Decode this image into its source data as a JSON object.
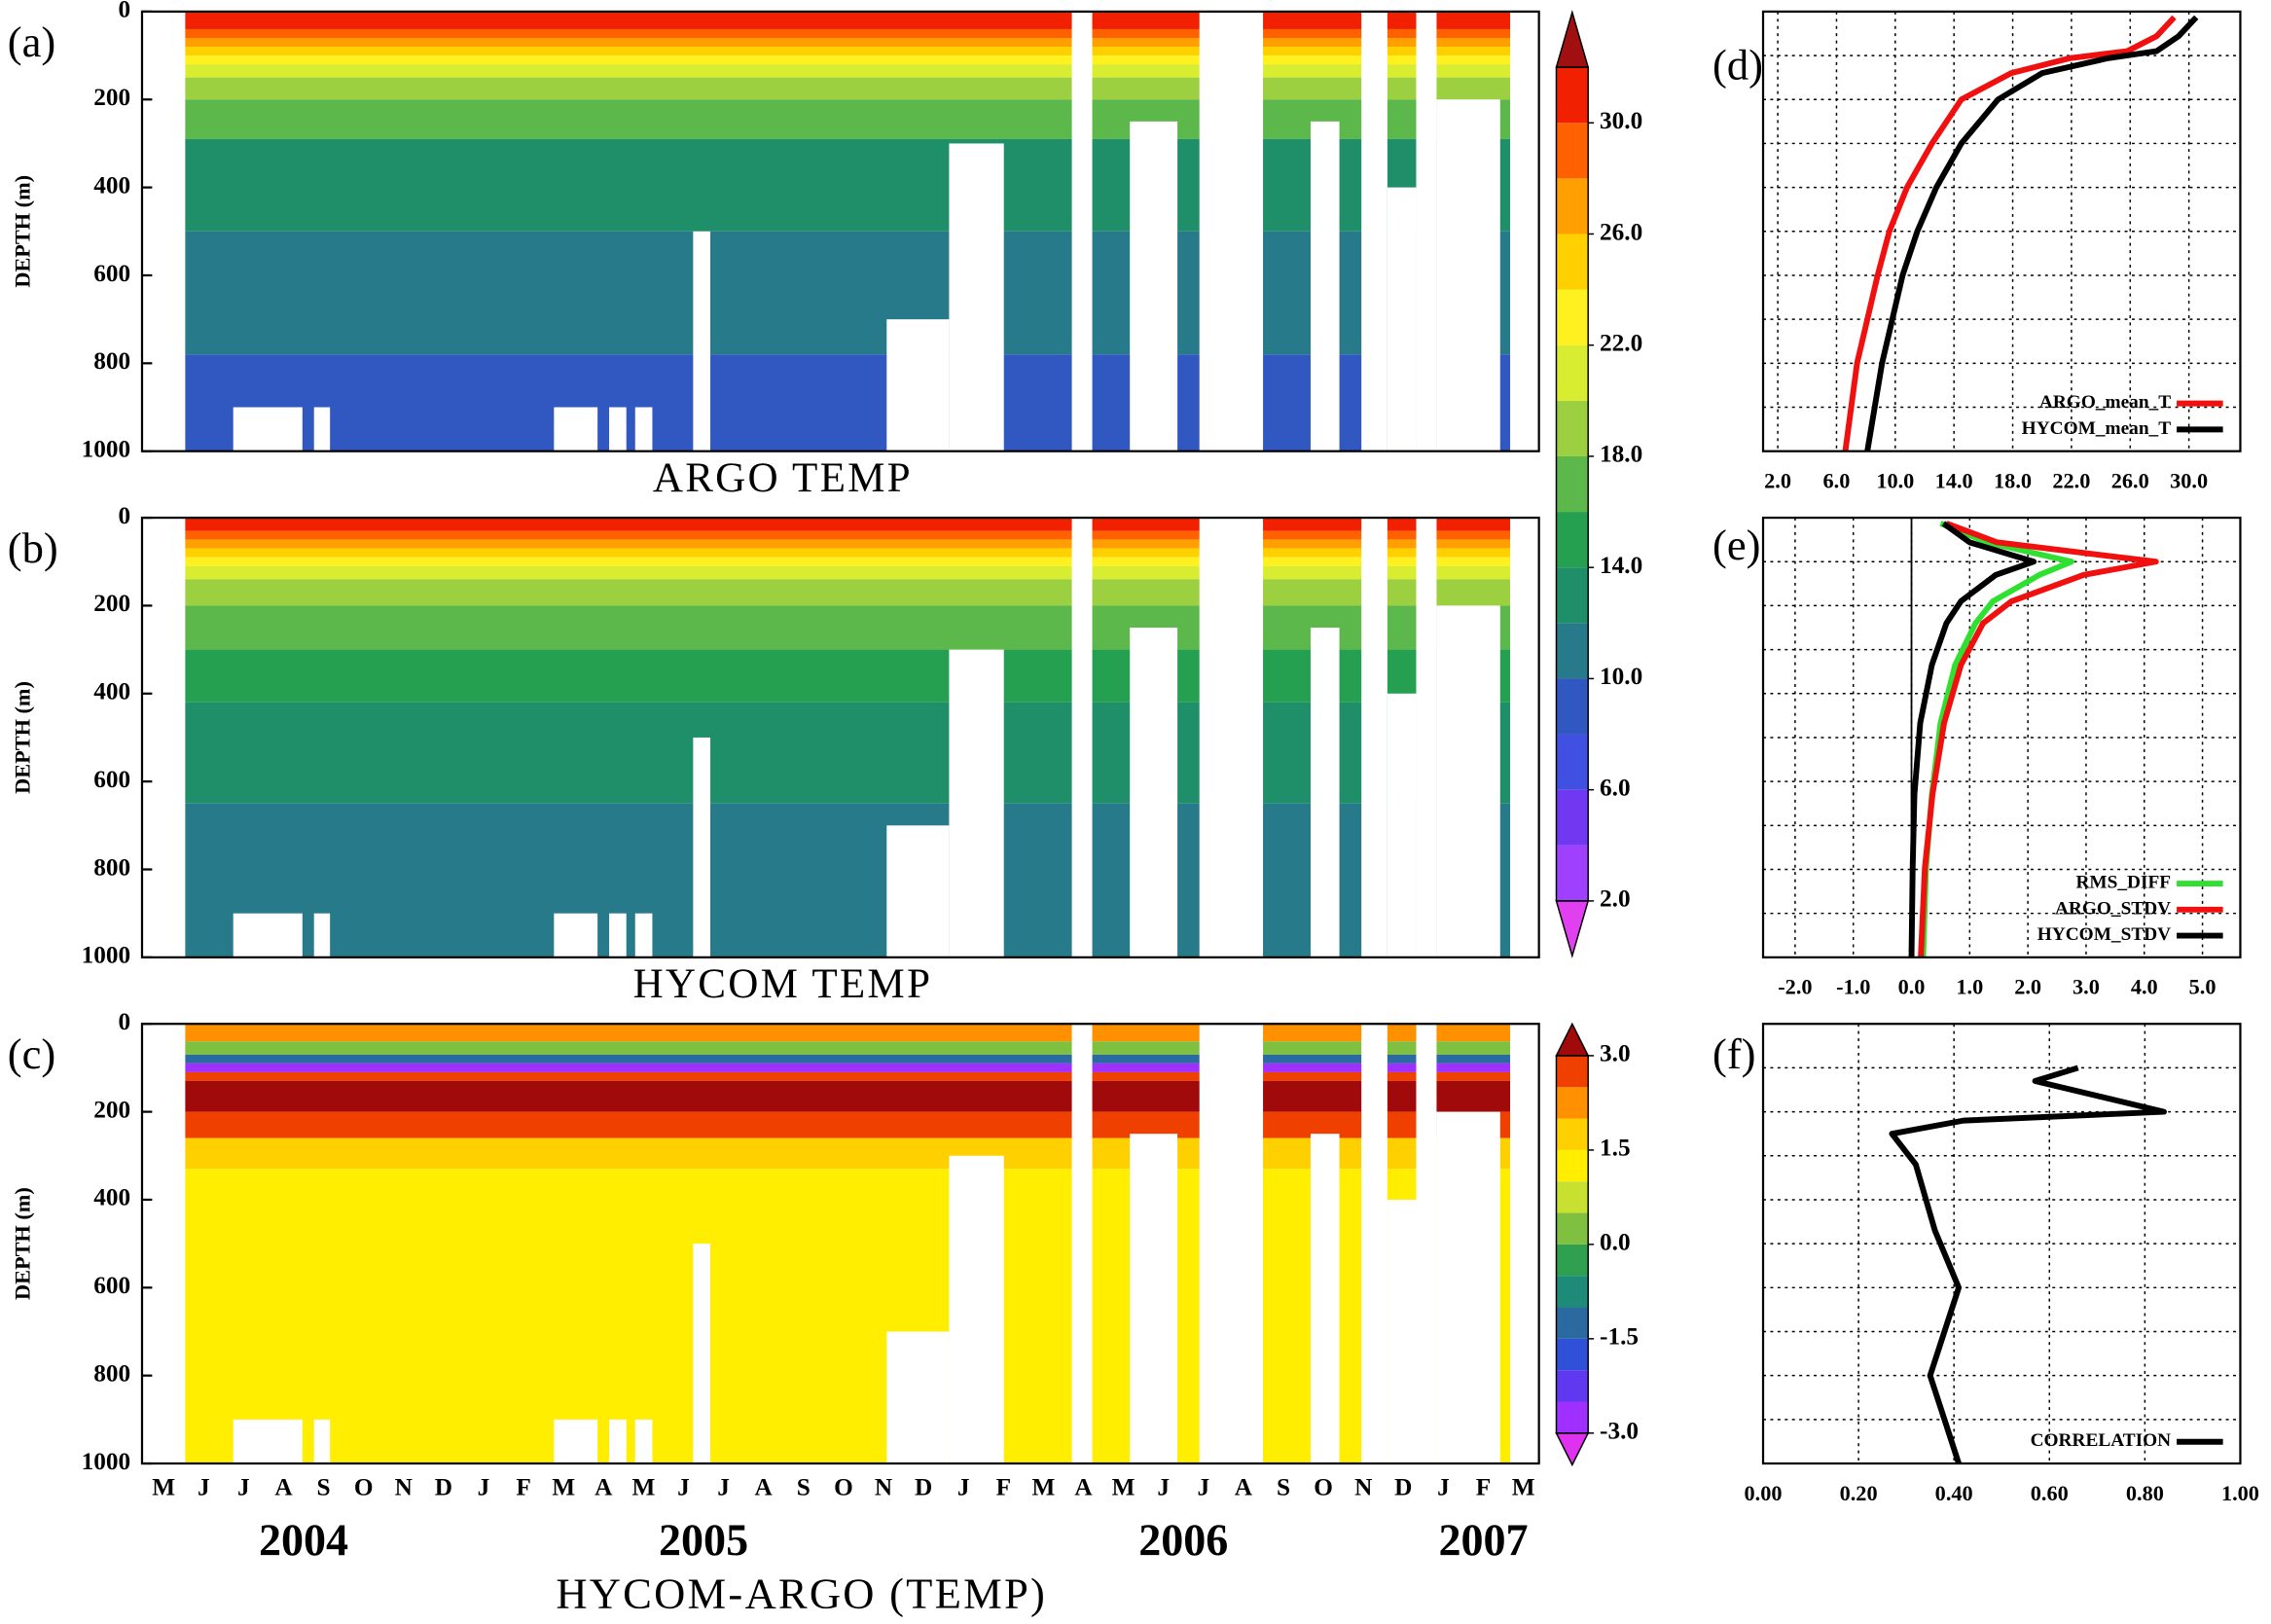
{
  "chart_data": [
    {
      "type": "contour",
      "label": "(a)",
      "title": "ARGO TEMP",
      "y_label": "DEPTH (m)",
      "ylim": [
        1000,
        0
      ],
      "yticks": [
        0,
        200,
        400,
        600,
        800,
        1000
      ],
      "xlim": [
        -0.54,
        34.39
      ],
      "x_range": [
        0.54,
        33.67
      ],
      "layers": [
        {
          "top": 0,
          "bottom": 40,
          "value": 31
        },
        {
          "top": 40,
          "bottom": 60,
          "value": 29
        },
        {
          "top": 60,
          "bottom": 80,
          "value": 27
        },
        {
          "top": 80,
          "bottom": 100,
          "value": 25
        },
        {
          "top": 100,
          "bottom": 120,
          "value": 23
        },
        {
          "top": 120,
          "bottom": 150,
          "value": 21
        },
        {
          "top": 150,
          "bottom": 200,
          "value": 19
        },
        {
          "top": 200,
          "bottom": 290,
          "value": 17
        },
        {
          "top": 290,
          "bottom": 500,
          "value": 13
        },
        {
          "top": 500,
          "bottom": 780,
          "value": 11
        },
        {
          "top": 780,
          "bottom": 1000,
          "value": 9
        }
      ],
      "gaps": [
        {
          "x0": 1.74,
          "x1": 3.47,
          "top": 900
        },
        {
          "x0": 3.76,
          "x1": 4.16,
          "top": 900
        },
        {
          "x0": 9.76,
          "x1": 10.85,
          "top": 900
        },
        {
          "x0": 11.14,
          "x1": 11.57,
          "top": 900
        },
        {
          "x0": 11.79,
          "x1": 12.22,
          "top": 900
        },
        {
          "x0": 13.24,
          "x1": 13.67,
          "top": 500
        },
        {
          "x0": 18.08,
          "x1": 19.64,
          "top": 700
        },
        {
          "x0": 19.64,
          "x1": 21.01,
          "top": 300
        },
        {
          "x0": 22.71,
          "x1": 23.22,
          "top": 0
        },
        {
          "x0": 24.16,
          "x1": 25.35,
          "top": 250
        },
        {
          "x0": 25.9,
          "x1": 27.49,
          "top": 0
        },
        {
          "x0": 28.68,
          "x1": 29.4,
          "top": 250
        },
        {
          "x0": 29.95,
          "x1": 30.6,
          "top": 0
        },
        {
          "x0": 30.6,
          "x1": 31.32,
          "top": 400
        },
        {
          "x0": 31.32,
          "x1": 31.83,
          "top": 0
        },
        {
          "x0": 31.83,
          "x1": 33.42,
          "top": 200
        }
      ],
      "colorbar": {
        "levels": [
          2,
          4,
          6,
          8,
          10,
          12,
          14,
          16,
          18,
          20,
          22,
          24,
          26,
          28,
          30,
          32
        ],
        "colors": [
          "#e040f0",
          "#a040ff",
          "#7038f0",
          "#4050e0",
          "#3158c0",
          "#267a8a",
          "#1f8f6a",
          "#24a050",
          "#5cb84a",
          "#9cd040",
          "#d8ec30",
          "#fff020",
          "#ffd000",
          "#ffa000",
          "#ff6000",
          "#f02000",
          "#a01010"
        ],
        "ticks": [
          {
            "value": 2,
            "label": "2.0"
          },
          {
            "value": 6,
            "label": "6.0"
          },
          {
            "value": 10,
            "label": "10.0"
          },
          {
            "value": 14,
            "label": "14.0"
          },
          {
            "value": 18,
            "label": "18.0"
          },
          {
            "value": 22,
            "label": "22.0"
          },
          {
            "value": 26,
            "label": "26.0"
          },
          {
            "value": 30,
            "label": "30.0"
          }
        ]
      }
    },
    {
      "type": "contour",
      "label": "(b)",
      "title": "HYCOM TEMP",
      "y_label": "DEPTH (m)",
      "ylim": [
        1000,
        0
      ],
      "yticks": [
        0,
        200,
        400,
        600,
        800,
        1000
      ],
      "xlim": [
        -0.54,
        34.39
      ],
      "x_range": [
        0.54,
        33.67
      ],
      "layers": [
        {
          "top": 0,
          "bottom": 30,
          "value": 31
        },
        {
          "top": 30,
          "bottom": 50,
          "value": 29
        },
        {
          "top": 50,
          "bottom": 70,
          "value": 27
        },
        {
          "top": 70,
          "bottom": 90,
          "value": 25
        },
        {
          "top": 90,
          "bottom": 110,
          "value": 23
        },
        {
          "top": 110,
          "bottom": 140,
          "value": 21
        },
        {
          "top": 140,
          "bottom": 200,
          "value": 19
        },
        {
          "top": 200,
          "bottom": 300,
          "value": 17
        },
        {
          "top": 300,
          "bottom": 420,
          "value": 15
        },
        {
          "top": 420,
          "bottom": 650,
          "value": 13
        },
        {
          "top": 650,
          "bottom": 1000,
          "value": 11
        }
      ],
      "gaps": [
        {
          "x0": 1.74,
          "x1": 3.47,
          "top": 900
        },
        {
          "x0": 3.76,
          "x1": 4.16,
          "top": 900
        },
        {
          "x0": 9.76,
          "x1": 10.85,
          "top": 900
        },
        {
          "x0": 11.14,
          "x1": 11.57,
          "top": 900
        },
        {
          "x0": 11.79,
          "x1": 12.22,
          "top": 900
        },
        {
          "x0": 13.24,
          "x1": 13.67,
          "top": 500
        },
        {
          "x0": 18.08,
          "x1": 19.64,
          "top": 700
        },
        {
          "x0": 19.64,
          "x1": 21.01,
          "top": 300
        },
        {
          "x0": 22.71,
          "x1": 23.22,
          "top": 0
        },
        {
          "x0": 24.16,
          "x1": 25.35,
          "top": 250
        },
        {
          "x0": 25.9,
          "x1": 27.49,
          "top": 0
        },
        {
          "x0": 28.68,
          "x1": 29.4,
          "top": 250
        },
        {
          "x0": 29.95,
          "x1": 30.6,
          "top": 0
        },
        {
          "x0": 30.6,
          "x1": 31.32,
          "top": 400
        },
        {
          "x0": 31.32,
          "x1": 31.83,
          "top": 0
        },
        {
          "x0": 31.83,
          "x1": 33.42,
          "top": 200
        }
      ]
    },
    {
      "type": "contour",
      "label": "(c)",
      "x_label": "HYCOM-ARGO (TEMP)",
      "y_label": "DEPTH (m)",
      "ylim": [
        1000,
        0
      ],
      "yticks": [
        0,
        200,
        400,
        600,
        800,
        1000
      ],
      "xlim": [
        -0.54,
        34.39
      ],
      "x_range": [
        0.54,
        33.67
      ],
      "categories": [
        "M",
        "J",
        "J",
        "A",
        "S",
        "O",
        "N",
        "D",
        "J",
        "F",
        "M",
        "A",
        "M",
        "J",
        "J",
        "A",
        "S",
        "O",
        "N",
        "D",
        "J",
        "F",
        "M",
        "A",
        "M",
        "J",
        "J",
        "A",
        "S",
        "O",
        "N",
        "D",
        "J",
        "F",
        "M"
      ],
      "x_groups": [
        {
          "label": "2004",
          "from": 0,
          "to": 7
        },
        {
          "label": "2005",
          "from": 8,
          "to": 19
        },
        {
          "label": "2006",
          "from": 20,
          "to": 31
        },
        {
          "label": "2007",
          "from": 32,
          "to": 34
        }
      ],
      "layers": [
        {
          "top": 0,
          "bottom": 40,
          "value": 2.2
        },
        {
          "top": 40,
          "bottom": 70,
          "value": 0.2
        },
        {
          "top": 70,
          "bottom": 90,
          "value": -1.2
        },
        {
          "top": 90,
          "bottom": 110,
          "value": -2.7
        },
        {
          "top": 110,
          "bottom": 130,
          "value": 2.7
        },
        {
          "top": 130,
          "bottom": 200,
          "value": 3.2
        },
        {
          "top": 200,
          "bottom": 260,
          "value": 2.7
        },
        {
          "top": 260,
          "bottom": 330,
          "value": 1.7
        },
        {
          "top": 330,
          "bottom": 1000,
          "value": 1.2
        }
      ],
      "gaps": [
        {
          "x0": 1.74,
          "x1": 3.47,
          "top": 900
        },
        {
          "x0": 3.76,
          "x1": 4.16,
          "top": 900
        },
        {
          "x0": 9.76,
          "x1": 10.85,
          "top": 900
        },
        {
          "x0": 11.14,
          "x1": 11.57,
          "top": 900
        },
        {
          "x0": 11.79,
          "x1": 12.22,
          "top": 900
        },
        {
          "x0": 13.24,
          "x1": 13.67,
          "top": 500
        },
        {
          "x0": 18.08,
          "x1": 19.64,
          "top": 700
        },
        {
          "x0": 19.64,
          "x1": 21.01,
          "top": 300
        },
        {
          "x0": 22.71,
          "x1": 23.22,
          "top": 0
        },
        {
          "x0": 24.16,
          "x1": 25.35,
          "top": 250
        },
        {
          "x0": 25.9,
          "x1": 27.49,
          "top": 0
        },
        {
          "x0": 28.68,
          "x1": 29.4,
          "top": 250
        },
        {
          "x0": 29.95,
          "x1": 30.6,
          "top": 0
        },
        {
          "x0": 30.6,
          "x1": 31.32,
          "top": 400
        },
        {
          "x0": 31.32,
          "x1": 31.83,
          "top": 0
        },
        {
          "x0": 31.83,
          "x1": 33.42,
          "top": 200
        }
      ],
      "colorbar": {
        "levels": [
          -3,
          -2.5,
          -2,
          -1.5,
          -1,
          -0.5,
          0,
          0.5,
          1,
          1.5,
          2,
          2.5,
          3
        ],
        "colors": [
          "#e030f0",
          "#a030ff",
          "#6038f0",
          "#3050d8",
          "#2a6aa0",
          "#1e8a78",
          "#2ea050",
          "#80c040",
          "#c8e030",
          "#ffee00",
          "#ffd000",
          "#ff9000",
          "#f04000",
          "#a00a0a"
        ],
        "ticks": [
          {
            "value": -3,
            "label": "-3.0"
          },
          {
            "value": -1.5,
            "label": "-1.5"
          },
          {
            "value": 0,
            "label": "0.0"
          },
          {
            "value": 1.5,
            "label": "1.5"
          },
          {
            "value": 3,
            "label": "3.0"
          }
        ]
      }
    },
    {
      "type": "profile",
      "label": "(d)",
      "xlim": [
        1,
        33.5
      ],
      "ylim": [
        1000,
        0
      ],
      "grid": true,
      "xticks": [
        {
          "value": 2,
          "label": "2.0"
        },
        {
          "value": 6,
          "label": "6.0"
        },
        {
          "value": 10,
          "label": "10.0"
        },
        {
          "value": 14,
          "label": "14.0"
        },
        {
          "value": 18,
          "label": "18.0"
        },
        {
          "value": 22,
          "label": "22.0"
        },
        {
          "value": 26,
          "label": "26.0"
        },
        {
          "value": 30,
          "label": "30.0"
        }
      ],
      "yticks": [
        0,
        100,
        200,
        300,
        400,
        500,
        600,
        700,
        800,
        900,
        1000
      ],
      "y": [
        13,
        56,
        90,
        106,
        140,
        200,
        300,
        400,
        500,
        600,
        700,
        800,
        900,
        1000
      ],
      "series": [
        {
          "name": "ARGO_mean_T",
          "color": "#f01010",
          "values": [
            29.0,
            27.8,
            25.8,
            21.9,
            17.9,
            14.5,
            12.5,
            10.8,
            9.6,
            8.8,
            8.1,
            7.4,
            7.0,
            6.6
          ]
        },
        {
          "name": "HYCOM_mean_T",
          "color": "#000000",
          "values": [
            30.5,
            29.3,
            27.8,
            24.5,
            20.0,
            17.0,
            14.5,
            12.8,
            11.5,
            10.5,
            9.8,
            9.1,
            8.6,
            8.1
          ]
        }
      ]
    },
    {
      "type": "profile",
      "label": "(e)",
      "xlim": [
        -2.55,
        5.65
      ],
      "ylim": [
        1000,
        0
      ],
      "grid": true,
      "xticks": [
        {
          "value": -2,
          "label": "-2.0"
        },
        {
          "value": -1,
          "label": "-1.0"
        },
        {
          "value": 0,
          "label": "0.0"
        },
        {
          "value": 1,
          "label": "1.0"
        },
        {
          "value": 2,
          "label": "2.0"
        },
        {
          "value": 3,
          "label": "3.0"
        },
        {
          "value": 4,
          "label": "4.0"
        },
        {
          "value": 5,
          "label": "5.0"
        }
      ],
      "yticks": [
        0,
        100,
        200,
        300,
        400,
        500,
        600,
        700,
        800,
        900,
        1000
      ],
      "y": [
        13,
        56,
        100,
        130,
        190,
        240,
        335,
        467,
        630,
        796,
        1000
      ],
      "series": [
        {
          "name": "RMS_DIFF",
          "color": "#30e030",
          "values": [
            0.5,
            1.3,
            2.75,
            2.2,
            1.4,
            1.1,
            0.75,
            0.5,
            0.35,
            0.25,
            0.2
          ]
        },
        {
          "name": "ARGO_STDV",
          "color": "#f01010",
          "values": [
            0.6,
            1.47,
            4.2,
            2.96,
            1.72,
            1.23,
            0.85,
            0.56,
            0.36,
            0.23,
            0.16
          ]
        },
        {
          "name": "HYCOM_STDV",
          "color": "#000000",
          "values": [
            0.55,
            1.0,
            2.1,
            1.45,
            0.85,
            0.6,
            0.35,
            0.15,
            0.05,
            0.02,
            0.0
          ]
        }
      ]
    },
    {
      "type": "profile",
      "label": "(f)",
      "xlim": [
        0,
        1
      ],
      "ylim": [
        1000,
        0
      ],
      "grid": true,
      "xticks": [
        {
          "value": 0,
          "label": "0.00"
        },
        {
          "value": 0.2,
          "label": "0.20"
        },
        {
          "value": 0.4,
          "label": "0.40"
        },
        {
          "value": 0.6,
          "label": "0.60"
        },
        {
          "value": 0.8,
          "label": "0.80"
        },
        {
          "value": 1,
          "label": "1.00"
        }
      ],
      "yticks": [
        0,
        100,
        200,
        300,
        400,
        500,
        600,
        700,
        800,
        900,
        1000
      ],
      "y": [
        100,
        130,
        200,
        220,
        250,
        320,
        470,
        600,
        800,
        900,
        1000
      ],
      "series": [
        {
          "name": "CORRELATION",
          "color": "#000000",
          "values": [
            0.66,
            0.57,
            0.84,
            0.42,
            0.27,
            0.32,
            0.36,
            0.41,
            0.35,
            0.38,
            0.41
          ]
        }
      ]
    }
  ]
}
